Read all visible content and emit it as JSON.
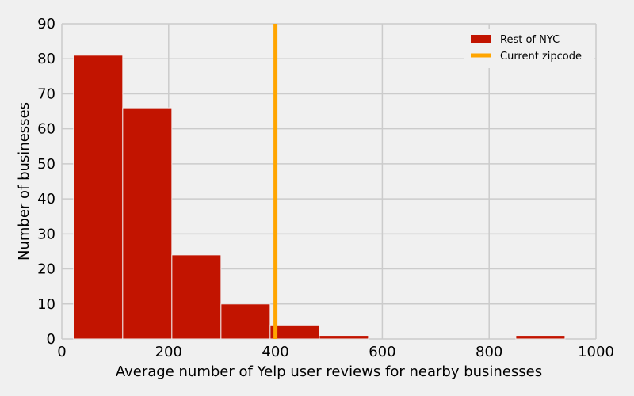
{
  "chart_data": {
    "type": "bar",
    "xlabel": "Average number of Yelp user reviews for nearby businesses",
    "ylabel": "Number of businesses",
    "xlim": [
      0,
      1000
    ],
    "ylim": [
      0,
      90
    ],
    "xticks": [
      0,
      200,
      400,
      600,
      800,
      1000
    ],
    "yticks": [
      0,
      10,
      20,
      30,
      40,
      50,
      60,
      70,
      80,
      90
    ],
    "grid": true,
    "legend_position": "top-right",
    "series": [
      {
        "name": "Rest of NYC",
        "kind": "histogram",
        "color": "#c21400",
        "bins": [
          {
            "x0": 22,
            "x1": 114,
            "count": 81
          },
          {
            "x0": 114,
            "x1": 206,
            "count": 66
          },
          {
            "x0": 206,
            "x1": 298,
            "count": 24
          },
          {
            "x0": 298,
            "x1": 390,
            "count": 10
          },
          {
            "x0": 390,
            "x1": 482,
            "count": 4
          },
          {
            "x0": 482,
            "x1": 574,
            "count": 1
          },
          {
            "x0": 574,
            "x1": 666,
            "count": 0
          },
          {
            "x0": 666,
            "x1": 758,
            "count": 0
          },
          {
            "x0": 758,
            "x1": 850,
            "count": 0
          },
          {
            "x0": 850,
            "x1": 942,
            "count": 1
          }
        ]
      },
      {
        "name": "Current zipcode",
        "kind": "vline",
        "color": "#ffa500",
        "x": 400
      }
    ]
  }
}
